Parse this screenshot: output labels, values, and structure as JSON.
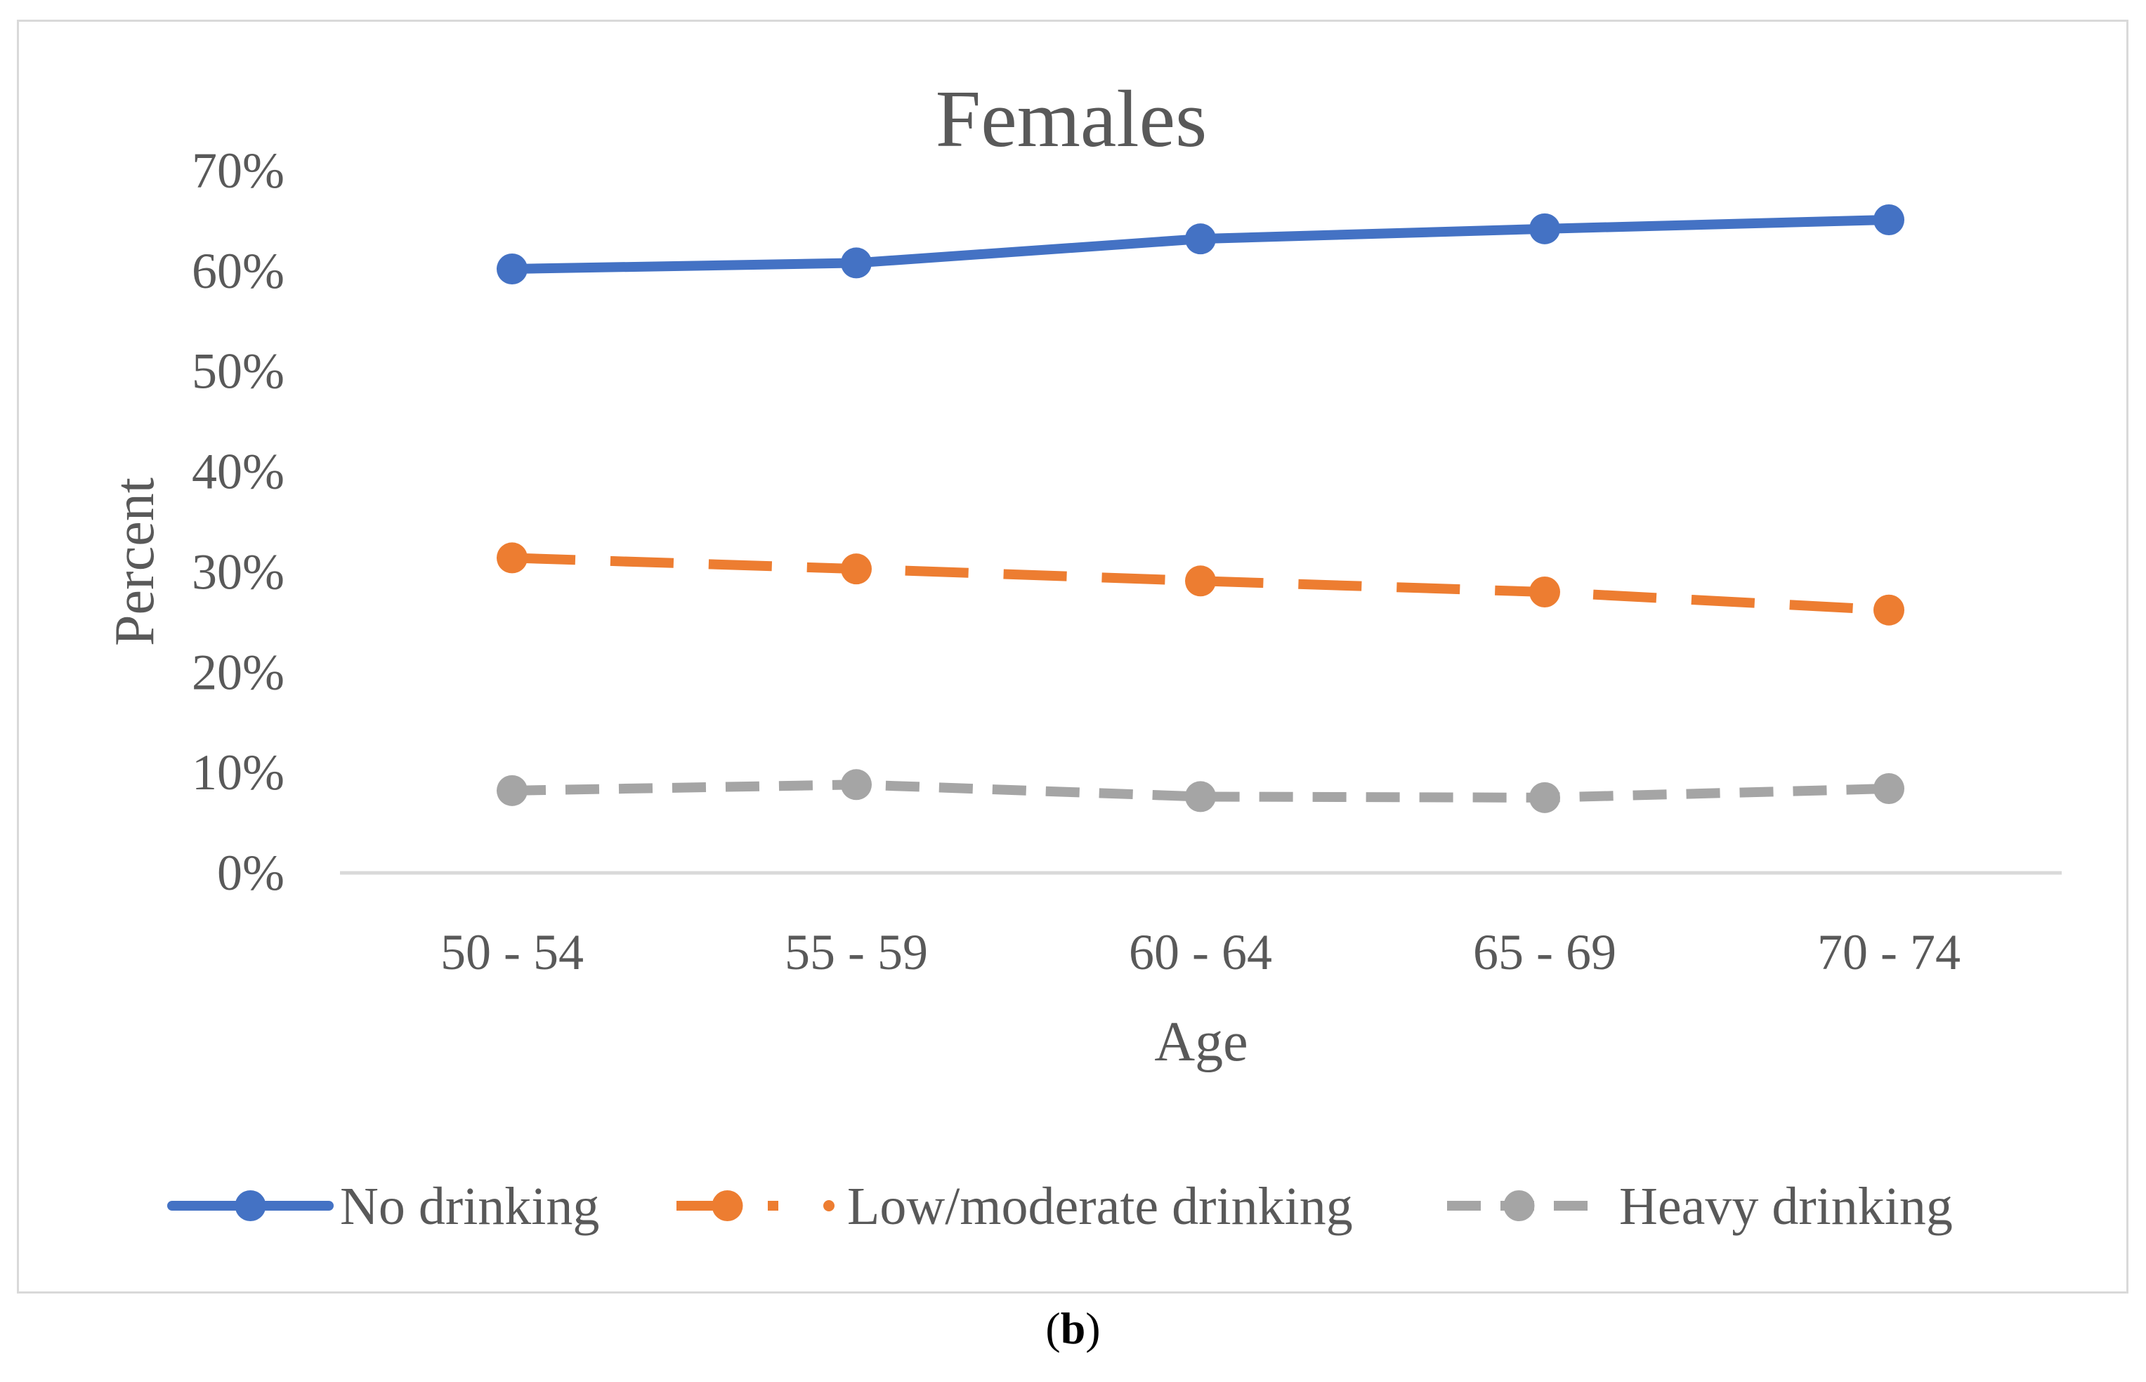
{
  "chart_data": {
    "type": "line",
    "title": "Females",
    "xlabel": "Age",
    "ylabel": "Percent",
    "categories": [
      "50 - 54",
      "55 - 59",
      "60 - 64",
      "65 - 69",
      "70 - 74"
    ],
    "ylim": [
      0,
      70
    ],
    "yticks": [
      0,
      10,
      20,
      30,
      40,
      50,
      60,
      70
    ],
    "ytick_labels": [
      "0%",
      "10%",
      "20%",
      "30%",
      "40%",
      "50%",
      "60%",
      "70%"
    ],
    "grid": false,
    "legend_position": "bottom",
    "series": [
      {
        "name": "No drinking",
        "color": "#4472c4",
        "style": "solid",
        "values": [
          60.2,
          60.8,
          63.2,
          64.2,
          65.1
        ]
      },
      {
        "name": "Low/moderate drinking",
        "color": "#ed7d31",
        "style": "dashed",
        "values": [
          31.4,
          30.3,
          29.1,
          28.0,
          26.2
        ]
      },
      {
        "name": "Heavy drinking",
        "color": "#a5a5a5",
        "style": "dashed",
        "values": [
          8.2,
          8.8,
          7.6,
          7.5,
          8.4
        ]
      }
    ]
  },
  "caption": {
    "open": "(",
    "letter": "b",
    "close": ")"
  }
}
